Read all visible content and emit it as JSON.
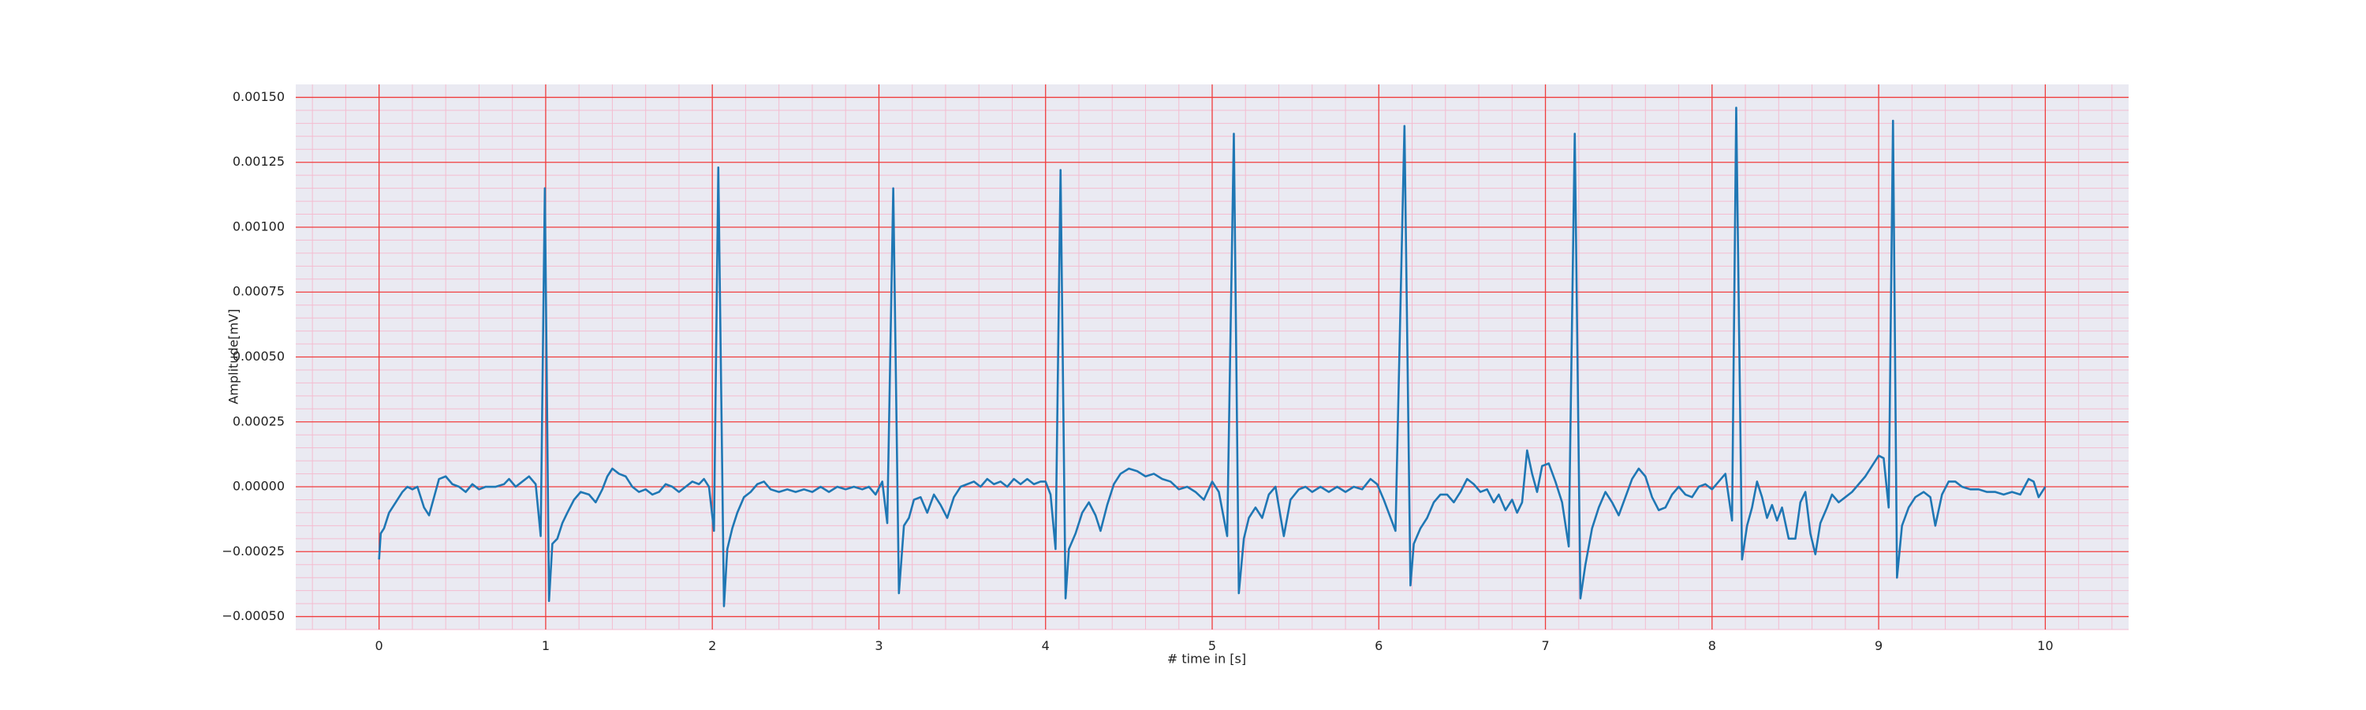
{
  "chart_data": {
    "type": "line",
    "xlabel": "# time in [s]",
    "ylabel": "Amplitude[mV]",
    "xlim": [
      -0.5,
      10.5
    ],
    "ylim": [
      -0.00055,
      0.00155
    ],
    "xticks": [
      0,
      1,
      2,
      3,
      4,
      5,
      6,
      7,
      8,
      9,
      10
    ],
    "yticks": [
      {
        "value": -0.0005,
        "label": "−0.00050"
      },
      {
        "value": -0.00025,
        "label": "−0.00025"
      },
      {
        "value": 0,
        "label": "0.00000"
      },
      {
        "value": 0.00025,
        "label": "0.00025"
      },
      {
        "value": 0.0005,
        "label": "0.00050"
      },
      {
        "value": 0.00075,
        "label": "0.00075"
      },
      {
        "value": 0.001,
        "label": "0.00100"
      },
      {
        "value": 0.00125,
        "label": "0.00125"
      },
      {
        "value": 0.0015,
        "label": "0.00150"
      }
    ],
    "grid": true,
    "minor_grid": true,
    "grid_color": "#f03c3c",
    "minor_grid_color": "#f4bcd0",
    "background": "#eaeaf2",
    "color": "#1f77b4",
    "x": [
      0.0,
      0.01,
      0.03,
      0.06,
      0.1,
      0.14,
      0.17,
      0.2,
      0.23,
      0.27,
      0.3,
      0.33,
      0.36,
      0.4,
      0.44,
      0.48,
      0.52,
      0.56,
      0.6,
      0.64,
      0.7,
      0.75,
      0.78,
      0.82,
      0.86,
      0.9,
      0.94,
      0.97,
      0.995,
      1.02,
      1.04,
      1.07,
      1.1,
      1.13,
      1.17,
      1.21,
      1.26,
      1.3,
      1.34,
      1.37,
      1.4,
      1.44,
      1.48,
      1.52,
      1.56,
      1.6,
      1.64,
      1.68,
      1.72,
      1.76,
      1.8,
      1.84,
      1.88,
      1.92,
      1.95,
      1.98,
      2.01,
      2.036,
      2.07,
      2.09,
      2.12,
      2.15,
      2.19,
      2.23,
      2.27,
      2.31,
      2.35,
      2.4,
      2.45,
      2.5,
      2.55,
      2.6,
      2.65,
      2.7,
      2.75,
      2.8,
      2.85,
      2.9,
      2.94,
      2.98,
      3.02,
      3.05,
      3.086,
      3.12,
      3.15,
      3.18,
      3.21,
      3.25,
      3.29,
      3.33,
      3.37,
      3.41,
      3.45,
      3.49,
      3.53,
      3.57,
      3.61,
      3.65,
      3.69,
      3.73,
      3.77,
      3.81,
      3.85,
      3.89,
      3.93,
      3.97,
      4.0,
      4.03,
      4.06,
      4.09,
      4.12,
      4.14,
      4.18,
      4.22,
      4.26,
      4.3,
      4.33,
      4.37,
      4.41,
      4.45,
      4.5,
      4.55,
      4.6,
      4.65,
      4.7,
      4.75,
      4.8,
      4.85,
      4.9,
      4.95,
      5.0,
      5.04,
      5.09,
      5.13,
      5.16,
      5.19,
      5.22,
      5.26,
      5.3,
      5.34,
      5.38,
      5.43,
      5.47,
      5.52,
      5.56,
      5.6,
      5.65,
      5.7,
      5.75,
      5.8,
      5.85,
      5.9,
      5.95,
      5.99,
      6.03,
      6.1,
      6.154,
      6.19,
      6.21,
      6.25,
      6.29,
      6.33,
      6.37,
      6.41,
      6.45,
      6.49,
      6.53,
      6.57,
      6.61,
      6.65,
      6.69,
      6.72,
      6.76,
      6.8,
      6.83,
      6.86,
      6.89,
      6.92,
      6.95,
      6.98,
      7.02,
      7.06,
      7.1,
      7.14,
      7.176,
      7.21,
      7.24,
      7.28,
      7.32,
      7.36,
      7.4,
      7.44,
      7.48,
      7.52,
      7.56,
      7.6,
      7.64,
      7.68,
      7.72,
      7.76,
      7.8,
      7.84,
      7.88,
      7.92,
      7.96,
      8.0,
      8.04,
      8.08,
      8.12,
      8.145,
      8.18,
      8.21,
      8.24,
      8.27,
      8.3,
      8.33,
      8.36,
      8.39,
      8.42,
      8.46,
      8.5,
      8.53,
      8.56,
      8.59,
      8.62,
      8.65,
      8.69,
      8.72,
      8.76,
      8.8,
      8.84,
      8.88,
      8.92,
      8.96,
      9.0,
      9.03,
      9.06,
      9.086,
      9.11,
      9.14,
      9.18,
      9.22,
      9.27,
      9.31,
      9.34,
      9.38,
      9.42,
      9.46,
      9.5,
      9.55,
      9.6,
      9.65,
      9.7,
      9.75,
      9.8,
      9.85,
      9.9,
      9.93,
      9.96,
      10.0
    ],
    "values": [
      -0.00028,
      -0.00018,
      -0.00016,
      -0.0001,
      -6e-05,
      -2e-05,
      0,
      -1e-05,
      0,
      -8e-05,
      -0.00011,
      -4e-05,
      3e-05,
      4e-05,
      1e-05,
      0,
      -2e-05,
      1e-05,
      -1e-05,
      0,
      0,
      1e-05,
      3e-05,
      0,
      2e-05,
      4e-05,
      1e-05,
      -0.00019,
      0.00115,
      -0.00044,
      -0.00022,
      -0.0002,
      -0.00014,
      -0.0001,
      -5e-05,
      -2e-05,
      -3e-05,
      -6e-05,
      -1e-05,
      4e-05,
      7e-05,
      5e-05,
      4e-05,
      0,
      -2e-05,
      -1e-05,
      -3e-05,
      -2e-05,
      1e-05,
      0,
      -2e-05,
      0,
      2e-05,
      1e-05,
      3e-05,
      0,
      -0.00017,
      0.00123,
      -0.00046,
      -0.00024,
      -0.00016,
      -0.0001,
      -4e-05,
      -2e-05,
      1e-05,
      2e-05,
      -1e-05,
      -2e-05,
      -1e-05,
      -2e-05,
      -1e-05,
      -2e-05,
      0,
      -2e-05,
      0,
      -1e-05,
      0,
      -1e-05,
      0,
      -3e-05,
      2e-05,
      -0.00014,
      0.00115,
      -0.00041,
      -0.00015,
      -0.00012,
      -5e-05,
      -4e-05,
      -0.0001,
      -3e-05,
      -7e-05,
      -0.00012,
      -4e-05,
      0,
      1e-05,
      2e-05,
      0,
      3e-05,
      1e-05,
      2e-05,
      0,
      3e-05,
      1e-05,
      3e-05,
      1e-05,
      2e-05,
      2e-05,
      -3e-05,
      -0.00024,
      0.00122,
      -0.00043,
      -0.00024,
      -0.00018,
      -0.0001,
      -6e-05,
      -0.00011,
      -0.00017,
      -7e-05,
      1e-05,
      5e-05,
      7e-05,
      6e-05,
      4e-05,
      5e-05,
      3e-05,
      2e-05,
      -1e-05,
      0,
      -2e-05,
      -5e-05,
      2e-05,
      -2e-05,
      -0.00019,
      0.00136,
      -0.00041,
      -0.0002,
      -0.00012,
      -8e-05,
      -0.00012,
      -3e-05,
      0,
      -0.00019,
      -5e-05,
      -1e-05,
      0,
      -2e-05,
      0,
      -2e-05,
      0,
      -2e-05,
      0,
      -1e-05,
      3e-05,
      1e-05,
      -5e-05,
      -0.00017,
      0.00139,
      -0.00038,
      -0.00022,
      -0.00016,
      -0.00012,
      -6e-05,
      -3e-05,
      -3e-05,
      -6e-05,
      -2e-05,
      3e-05,
      1e-05,
      -2e-05,
      -1e-05,
      -6e-05,
      -3e-05,
      -9e-05,
      -5e-05,
      -0.0001,
      -6e-05,
      0.00014,
      5e-05,
      -2e-05,
      8e-05,
      9e-05,
      2e-05,
      -6e-05,
      -0.00023,
      0.00136,
      -0.00043,
      -0.0003,
      -0.00016,
      -8e-05,
      -2e-05,
      -6e-05,
      -0.00011,
      -4e-05,
      3e-05,
      7e-05,
      4e-05,
      -4e-05,
      -9e-05,
      -8e-05,
      -3e-05,
      0,
      -3e-05,
      -4e-05,
      0,
      1e-05,
      -1e-05,
      2e-05,
      5e-05,
      -0.00013,
      0.00146,
      -0.00028,
      -0.00015,
      -8e-05,
      2e-05,
      -4e-05,
      -0.00012,
      -7e-05,
      -0.00013,
      -8e-05,
      -0.0002,
      -0.0002,
      -6e-05,
      -2e-05,
      -0.00018,
      -0.00026,
      -0.00014,
      -8e-05,
      -3e-05,
      -6e-05,
      -4e-05,
      -2e-05,
      1e-05,
      4e-05,
      8e-05,
      0.00012,
      0.00011,
      -8e-05,
      0.00141,
      -0.00035,
      -0.00015,
      -8e-05,
      -4e-05,
      -2e-05,
      -4e-05,
      -0.00015,
      -3e-05,
      2e-05,
      2e-05,
      0,
      -1e-05,
      -1e-05,
      -2e-05,
      -2e-05,
      -3e-05,
      -2e-05,
      -3e-05,
      3e-05,
      2e-05,
      -4e-05,
      0
    ]
  }
}
